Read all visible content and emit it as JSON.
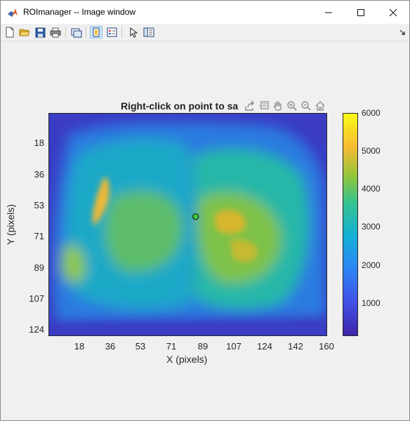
{
  "window": {
    "title": "ROImanager -- Image window",
    "controls": {
      "minimize": "minimize-icon",
      "maximize": "maximize-icon",
      "close": "close-icon"
    }
  },
  "toolbar": {
    "icons": [
      "new-figure-icon",
      "open-file-icon",
      "save-icon",
      "print-icon",
      "link-plot-icon",
      "insert-colorbar-icon",
      "insert-legend-icon",
      "pointer-icon",
      "property-inspector-icon"
    ],
    "active": "insert-colorbar-icon"
  },
  "axes_toolbar": {
    "icons": [
      "export-icon",
      "data-tips-icon",
      "pan-icon",
      "zoom-in-icon",
      "zoom-out-icon",
      "home-icon"
    ]
  },
  "plot": {
    "title": "Right-click on point to sa",
    "xlabel": "X (pixels)",
    "ylabel": "Y (pixels)",
    "xticks": [
      "18",
      "36",
      "53",
      "71",
      "89",
      "107",
      "124",
      "142",
      "160"
    ],
    "yticks": [
      "18",
      "36",
      "53",
      "71",
      "89",
      "107",
      "124"
    ]
  },
  "colorbar": {
    "ticks": [
      "6000",
      "5000",
      "4000",
      "3000",
      "2000",
      "1000"
    ],
    "colormap": "parula"
  },
  "marker": {
    "x": 86,
    "y": 60,
    "color": "#3cd23c"
  },
  "colors": {
    "accent": "#cce4f7",
    "axes": "#262626"
  }
}
